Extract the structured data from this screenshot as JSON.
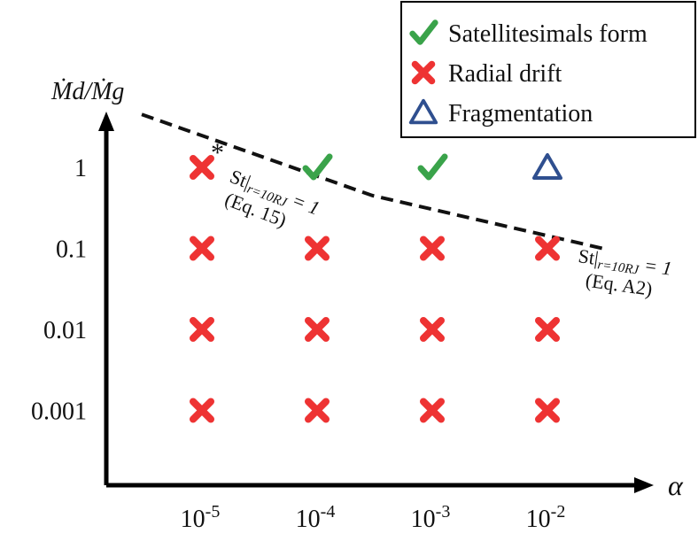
{
  "chart_data": {
    "type": "scatter",
    "xlabel": "α",
    "ylabel": "Ṁd/Ṁg",
    "x_ticks": [
      "10-5",
      "10-4",
      "10-3",
      "10-2"
    ],
    "x_tick_parts": [
      {
        "base": "10",
        "exp": "-5"
      },
      {
        "base": "10",
        "exp": "-4"
      },
      {
        "base": "10",
        "exp": "-3"
      },
      {
        "base": "10",
        "exp": "-2"
      }
    ],
    "y_ticks": [
      "1",
      "0.1",
      "0.01",
      "0.001"
    ],
    "x_values": [
      1e-05,
      0.0001,
      0.001,
      0.01
    ],
    "y_values": [
      1,
      0.1,
      0.01,
      0.001
    ],
    "x_scale": "log",
    "y_scale": "log",
    "grid": false,
    "legend_position": "top-right",
    "legend": [
      {
        "symbol": "check",
        "label": "Satellitesimals form",
        "color": "#3aa34a"
      },
      {
        "symbol": "cross",
        "label": "Radial drift",
        "color": "#ee3333"
      },
      {
        "symbol": "triangle",
        "label": "Fragmentation",
        "color": "#2f4f8f"
      }
    ],
    "points": [
      {
        "x": 1e-05,
        "y": 1,
        "outcome": "cross"
      },
      {
        "x": 0.0001,
        "y": 1,
        "outcome": "check"
      },
      {
        "x": 0.001,
        "y": 1,
        "outcome": "check"
      },
      {
        "x": 0.01,
        "y": 1,
        "outcome": "triangle"
      },
      {
        "x": 1e-05,
        "y": 0.1,
        "outcome": "cross"
      },
      {
        "x": 0.0001,
        "y": 0.1,
        "outcome": "cross"
      },
      {
        "x": 0.001,
        "y": 0.1,
        "outcome": "cross"
      },
      {
        "x": 0.01,
        "y": 0.1,
        "outcome": "cross"
      },
      {
        "x": 1e-05,
        "y": 0.01,
        "outcome": "cross"
      },
      {
        "x": 0.0001,
        "y": 0.01,
        "outcome": "cross"
      },
      {
        "x": 0.001,
        "y": 0.01,
        "outcome": "cross"
      },
      {
        "x": 0.01,
        "y": 0.01,
        "outcome": "cross"
      },
      {
        "x": 1e-05,
        "y": 0.001,
        "outcome": "cross"
      },
      {
        "x": 0.0001,
        "y": 0.001,
        "outcome": "cross"
      },
      {
        "x": 0.001,
        "y": 0.001,
        "outcome": "cross"
      },
      {
        "x": 0.01,
        "y": 0.001,
        "outcome": "cross"
      }
    ],
    "asterisk_marker": "*",
    "boundary_line": {
      "style": "dashed",
      "color": "#111111",
      "x": [
        3e-06,
        0.0003,
        0.03
      ],
      "y": [
        4.5,
        0.45,
        0.1
      ]
    },
    "annotations": [
      {
        "id": "eq15",
        "prefix": "St|",
        "sub": "r=10RJ",
        "suffix": " = 1",
        "ref": "(Eq. 15)"
      },
      {
        "id": "eqa2",
        "prefix": "St|",
        "sub": "r=10RJ",
        "suffix": " = 1",
        "ref": "(Eq. A2)"
      }
    ],
    "colors": {
      "check": "#3aa34a",
      "cross": "#ee3333",
      "triangle": "#2f4f8f",
      "axis": "#000000"
    }
  }
}
